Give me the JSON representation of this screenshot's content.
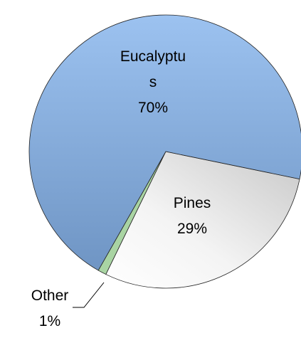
{
  "chart_data": {
    "type": "pie",
    "categories": [
      "Eucalyptus",
      "Pines",
      "Other"
    ],
    "values": [
      70,
      29,
      1
    ],
    "value_labels": [
      "70%",
      "29%",
      "1%"
    ],
    "colors": [
      "#8fb6e6",
      "#e6e6e6",
      "#a9d4a3"
    ]
  }
}
